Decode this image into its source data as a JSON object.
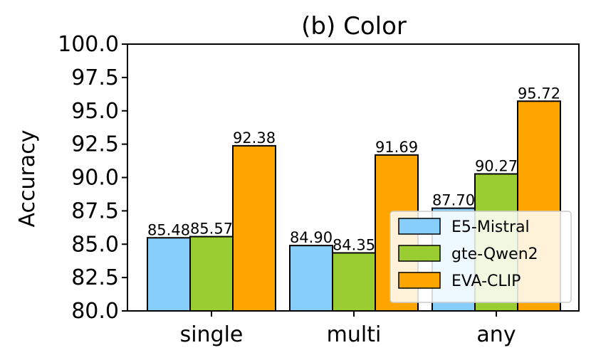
{
  "chart_data": {
    "type": "bar",
    "title": "(b) Color",
    "xlabel": "",
    "ylabel": "Accuracy",
    "ylim": [
      80.0,
      100.0
    ],
    "yticks": [
      "80.0",
      "82.5",
      "85.0",
      "87.5",
      "90.0",
      "92.5",
      "95.0",
      "97.5",
      "100.0"
    ],
    "categories": [
      "single",
      "multi",
      "any"
    ],
    "series": [
      {
        "name": "E5-Mistral",
        "color": "#87CEFA",
        "values": [
          85.48,
          84.9,
          87.7
        ],
        "labels": [
          "85.48",
          "84.90",
          "87.70"
        ]
      },
      {
        "name": "gte-Qwen2",
        "color": "#9ACD32",
        "values": [
          85.57,
          84.35,
          90.27
        ],
        "labels": [
          "85.57",
          "84.35",
          "90.27"
        ]
      },
      {
        "name": "EVA-CLIP",
        "color": "#FFA500",
        "values": [
          92.38,
          91.69,
          95.72
        ],
        "labels": [
          "92.38",
          "91.69",
          "95.72"
        ]
      }
    ],
    "legend_position": "lower-right",
    "grid": false
  }
}
